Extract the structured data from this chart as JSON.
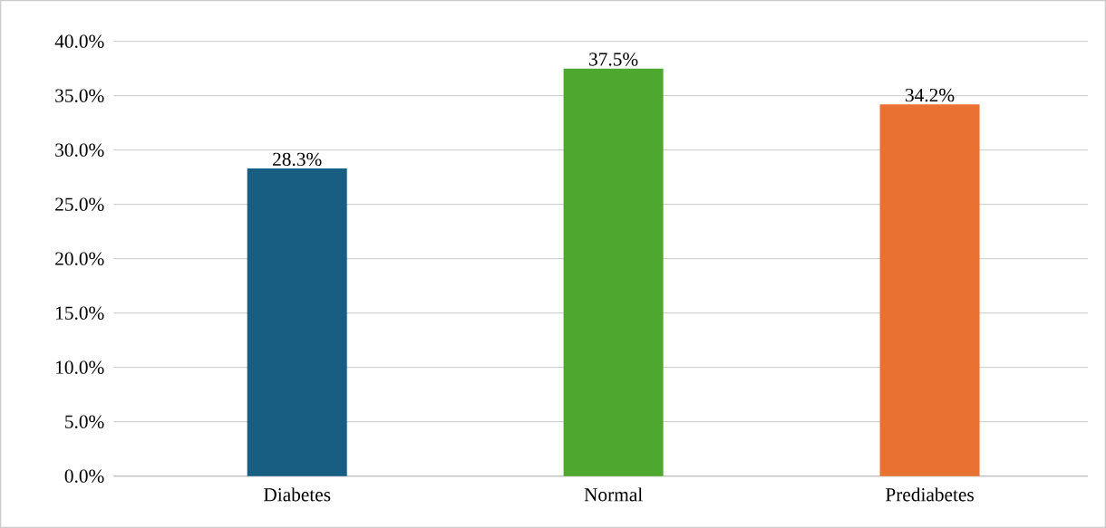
{
  "chart_data": {
    "type": "bar",
    "categories": [
      "Diabetes",
      "Normal",
      "Prediabetes"
    ],
    "values": [
      28.3,
      37.5,
      34.2
    ],
    "colors": [
      "#175e82",
      "#4ea72e",
      "#e97132"
    ],
    "value_labels": [
      "28.3%",
      "37.5%",
      "34.2%"
    ],
    "ylim": [
      0,
      40
    ],
    "yticks": [
      {
        "value": 0,
        "label": "0.0%"
      },
      {
        "value": 5,
        "label": "5.0%"
      },
      {
        "value": 10,
        "label": "10.0%"
      },
      {
        "value": 15,
        "label": "15.0%"
      },
      {
        "value": 20,
        "label": "20.0%"
      },
      {
        "value": 25,
        "label": "25.0%"
      },
      {
        "value": 30,
        "label": "30.0%"
      },
      {
        "value": 35,
        "label": "35.0%"
      },
      {
        "value": 40,
        "label": "40.0%"
      }
    ],
    "grid": "y"
  }
}
